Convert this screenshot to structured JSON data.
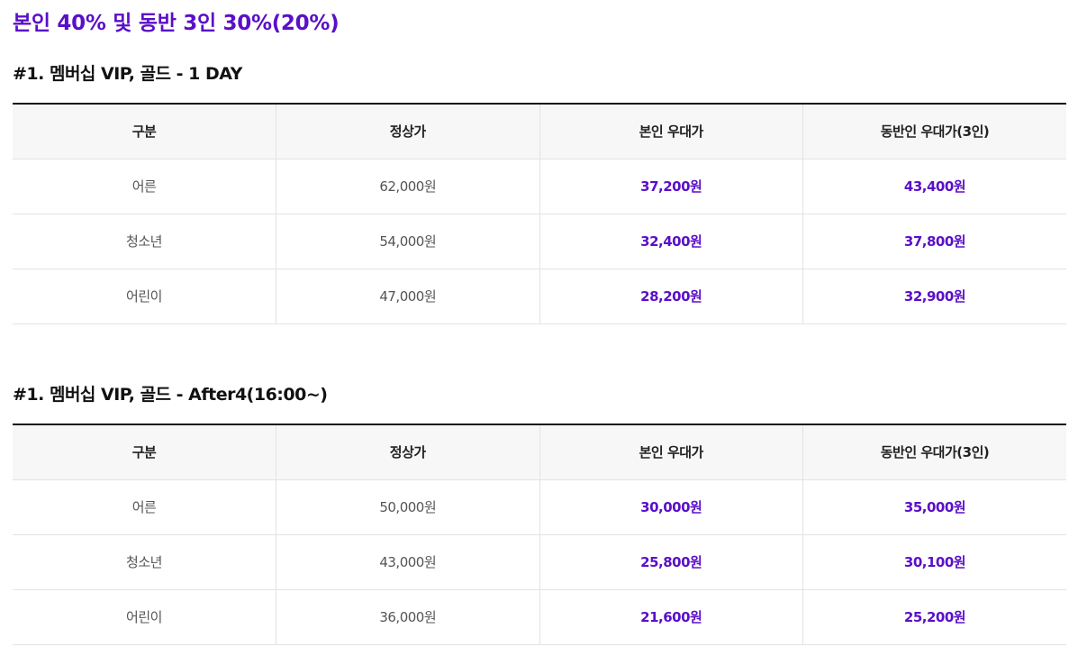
{
  "headline": "본인 40% 및 동반 3인 30%(20%)",
  "accent_color": "#5a0fc8",
  "sections": [
    {
      "title": "#1. 멤버십 VIP, 골드 - 1 DAY",
      "headers": [
        "구분",
        "정상가",
        "본인 우대가",
        "동반인 우대가(3인)"
      ],
      "rows": [
        [
          "어른",
          "62,000원",
          "37,200원",
          "43,400원"
        ],
        [
          "청소년",
          "54,000원",
          "32,400원",
          "37,800원"
        ],
        [
          "어린이",
          "47,000원",
          "28,200원",
          "32,900원"
        ]
      ]
    },
    {
      "title": "#1. 멤버십 VIP, 골드 - After4(16:00~)",
      "headers": [
        "구분",
        "정상가",
        "본인 우대가",
        "동반인 우대가(3인)"
      ],
      "rows": [
        [
          "어른",
          "50,000원",
          "30,000원",
          "35,000원"
        ],
        [
          "청소년",
          "43,000원",
          "25,800원",
          "30,100원"
        ],
        [
          "어린이",
          "36,000원",
          "21,600원",
          "25,200원"
        ]
      ]
    }
  ]
}
